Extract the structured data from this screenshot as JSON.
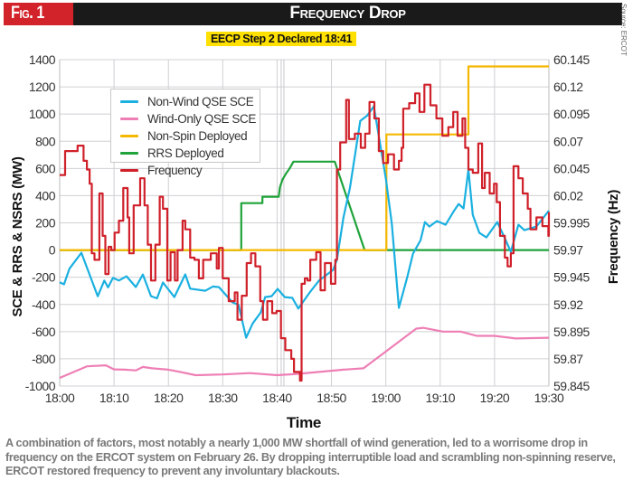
{
  "header": {
    "figure_label": "Fig. 1",
    "title": "Frequency Drop",
    "source": "Source: ERCOT"
  },
  "annotation": {
    "eecp": "EECP Step 2 Declared 18:41"
  },
  "caption": "A combination of factors, most notably a nearly 1,000 MW shortfall of wind generation, led to a worrisome drop in frequency on the ERCOT system on February 26. By dropping interruptible load and scrambling non-spinning reserve, ERCOT restored frequency to prevent any involuntary blackouts.",
  "chart_data": {
    "type": "line",
    "title": "Frequency Drop",
    "xlabel": "Time",
    "ylabel": "SCE & RRS & NSRS (MW)",
    "y2label": "Frequency (Hz)",
    "x_unit": "minutes after 18:00",
    "xlim": [
      0,
      90
    ],
    "ylim": [
      -1000,
      1400
    ],
    "y2lim": [
      59.845,
      60.145
    ],
    "grid": true,
    "legend_position": "top-left",
    "x_ticks": [
      "18:00",
      "18:10",
      "18:20",
      "18:30",
      "18:40",
      "18:50",
      "19:00",
      "19:10",
      "19:20",
      "19:30"
    ],
    "y_ticks": [
      "1400",
      "1200",
      "1000",
      "800",
      "600",
      "400",
      "200",
      "0",
      "-200",
      "-400",
      "-600",
      "-800",
      "-1000"
    ],
    "y2_ticks": [
      "60.145",
      "60.12",
      "60.095",
      "60.07",
      "60.045",
      "60.02",
      "59.995",
      "59.97",
      "59.945",
      "59.92",
      "59.895",
      "59.87",
      "59.845"
    ],
    "event_marker_minute": 41,
    "series": [
      {
        "name": "Non-Wind QSE SCE",
        "axis": "left",
        "color": "#1ab0e0",
        "points": [
          [
            0,
            -237
          ],
          [
            0.8,
            -252
          ],
          [
            1.8,
            -137
          ],
          [
            4,
            -20
          ],
          [
            7,
            -340
          ],
          [
            8.2,
            -225
          ],
          [
            8.9,
            -275
          ],
          [
            9.8,
            -205
          ],
          [
            10.9,
            -224
          ],
          [
            12.3,
            -193
          ],
          [
            14,
            -272
          ],
          [
            15.3,
            -180
          ],
          [
            16.8,
            -339
          ],
          [
            17.9,
            -355
          ],
          [
            19,
            -239
          ],
          [
            21.1,
            -346
          ],
          [
            23.1,
            -179
          ],
          [
            24,
            -284
          ],
          [
            26.8,
            -299
          ],
          [
            28.2,
            -268
          ],
          [
            29.3,
            -273
          ],
          [
            31.8,
            -385
          ],
          [
            32.9,
            -403
          ],
          [
            34.3,
            -645
          ],
          [
            35.5,
            -540
          ],
          [
            37,
            -458
          ],
          [
            37.8,
            -346
          ],
          [
            39,
            -339
          ],
          [
            40.1,
            -286
          ],
          [
            41.4,
            -346
          ],
          [
            42.8,
            -352
          ],
          [
            43.9,
            -430
          ],
          [
            46,
            -312
          ],
          [
            47.7,
            -225
          ],
          [
            50.3,
            -146
          ],
          [
            51,
            -71
          ],
          [
            52.2,
            239
          ],
          [
            53.4,
            458
          ],
          [
            55.3,
            950
          ],
          [
            56.6,
            990
          ],
          [
            57.8,
            1056
          ],
          [
            58.9,
            791
          ],
          [
            60,
            525
          ],
          [
            61.1,
            193
          ],
          [
            62.4,
            -425
          ],
          [
            63.9,
            -206
          ],
          [
            65,
            -27
          ],
          [
            66.4,
            73
          ],
          [
            67.2,
            206
          ],
          [
            68,
            173
          ],
          [
            69.4,
            213
          ],
          [
            71,
            186
          ],
          [
            72.5,
            286
          ],
          [
            73.4,
            339
          ],
          [
            74.3,
            306
          ],
          [
            75.2,
            591
          ],
          [
            76,
            259
          ],
          [
            77.2,
            126
          ],
          [
            78.5,
            93
          ],
          [
            80.5,
            206
          ],
          [
            81.9,
            86
          ],
          [
            83,
            -13
          ],
          [
            84.4,
            186
          ],
          [
            85.5,
            146
          ],
          [
            87.7,
            173
          ],
          [
            90,
            290
          ]
        ]
      },
      {
        "name": "Wind-Only QSE SCE",
        "axis": "left",
        "color": "#ee7fb5",
        "points": [
          [
            0,
            -940
          ],
          [
            5,
            -855
          ],
          [
            8.5,
            -848
          ],
          [
            10,
            -878
          ],
          [
            12,
            -880
          ],
          [
            14,
            -885
          ],
          [
            15.3,
            -860
          ],
          [
            17,
            -870
          ],
          [
            20,
            -880
          ],
          [
            22,
            -895
          ],
          [
            25,
            -920
          ],
          [
            30,
            -915
          ],
          [
            35,
            -905
          ],
          [
            40,
            -920
          ],
          [
            43.9,
            -910
          ],
          [
            52.2,
            -880
          ],
          [
            55.9,
            -870
          ],
          [
            65.6,
            -578
          ],
          [
            66.9,
            -572
          ],
          [
            70.5,
            -600
          ],
          [
            73.8,
            -600
          ],
          [
            76.7,
            -631
          ],
          [
            80,
            -631
          ],
          [
            83.9,
            -650
          ],
          [
            90,
            -645
          ]
        ]
      },
      {
        "name": "Non-Spin Deployed",
        "axis": "left",
        "color": "#f5b800",
        "points": [
          [
            0,
            0
          ],
          [
            60.1,
            0
          ],
          [
            60.1,
            850
          ],
          [
            75.2,
            850
          ],
          [
            75.2,
            1350
          ],
          [
            90,
            1350
          ]
        ]
      },
      {
        "name": "RRS Deployed",
        "axis": "left",
        "color": "#1fa33a",
        "points": [
          [
            0,
            0
          ],
          [
            33.4,
            0
          ],
          [
            33.4,
            345
          ],
          [
            37.3,
            345
          ],
          [
            37.3,
            392
          ],
          [
            40.3,
            392
          ],
          [
            40.5,
            460
          ],
          [
            41,
            520
          ],
          [
            41.6,
            560
          ],
          [
            42.3,
            600
          ],
          [
            43,
            650
          ],
          [
            50.6,
            650
          ],
          [
            56.1,
            0
          ],
          [
            90,
            0
          ]
        ]
      },
      {
        "name": "Frequency",
        "axis": "right",
        "color": "#d0202a",
        "points": [
          [
            0,
            60.039
          ],
          [
            1,
            60.061
          ],
          [
            3.3,
            60.066
          ],
          [
            4.4,
            60.052
          ],
          [
            5,
            60.044
          ],
          [
            5.5,
            60.031
          ],
          [
            5.9,
            59.967
          ],
          [
            6.4,
            59.961
          ],
          [
            7.3,
            60.022
          ],
          [
            7.9,
            59.983
          ],
          [
            8.4,
            59.948
          ],
          [
            9,
            59.973
          ],
          [
            9.5,
            59.97
          ],
          [
            10.1,
            59.986
          ],
          [
            10.9,
            59.997
          ],
          [
            11.7,
            60.027
          ],
          [
            12.5,
            60.0
          ],
          [
            12.8,
            59.967
          ],
          [
            13.6,
            60.011
          ],
          [
            14.8,
            60.036
          ],
          [
            15.6,
            60.011
          ],
          [
            16.2,
            59.975
          ],
          [
            16.8,
            59.942
          ],
          [
            17.6,
            59.975
          ],
          [
            18.4,
            60.019
          ],
          [
            19,
            60.008
          ],
          [
            19.8,
            59.942
          ],
          [
            20.4,
            59.968
          ],
          [
            21.2,
            59.942
          ],
          [
            21.7,
            59.97
          ],
          [
            22.6,
            59.997
          ],
          [
            23.1,
            59.989
          ],
          [
            24,
            59.963
          ],
          [
            24.8,
            59.961
          ],
          [
            25.6,
            59.944
          ],
          [
            26.4,
            59.961
          ],
          [
            27.8,
            59.967
          ],
          [
            28.9,
            59.953
          ],
          [
            29.3,
            59.972
          ],
          [
            30,
            59.944
          ],
          [
            31.1,
            59.923
          ],
          [
            32.2,
            59.931
          ],
          [
            32.7,
            59.906
          ],
          [
            33.5,
            59.928
          ],
          [
            34.4,
            59.958
          ],
          [
            35.2,
            59.967
          ],
          [
            36,
            59.955
          ],
          [
            36.9,
            59.923
          ],
          [
            37.4,
            59.906
          ],
          [
            38.2,
            59.923
          ],
          [
            39.1,
            59.912
          ],
          [
            39.9,
            59.914
          ],
          [
            40.7,
            59.889
          ],
          [
            41.5,
            59.878
          ],
          [
            42.6,
            59.87
          ],
          [
            43.1,
            59.858
          ],
          [
            44.2,
            59.85
          ],
          [
            44.5,
            59.939
          ],
          [
            45.1,
            59.944
          ],
          [
            45.6,
            59.942
          ],
          [
            46.1,
            59.961
          ],
          [
            47.2,
            59.968
          ],
          [
            48,
            59.933
          ],
          [
            48.8,
            59.958
          ],
          [
            49.9,
            59.939
          ],
          [
            50.7,
            59.961
          ],
          [
            51,
            60.044
          ],
          [
            51.6,
            60.069
          ],
          [
            52.7,
            60.108
          ],
          [
            53.2,
            60.072
          ],
          [
            54.3,
            60.077
          ],
          [
            55.4,
            60.064
          ],
          [
            56.2,
            60.077
          ],
          [
            57,
            60.106
          ],
          [
            57.9,
            60.091
          ],
          [
            58.7,
            60.061
          ],
          [
            59.5,
            60.05
          ],
          [
            60.4,
            60.058
          ],
          [
            61.5,
            60.044
          ],
          [
            62.4,
            60.052
          ],
          [
            62.9,
            60.064
          ],
          [
            63.2,
            60.1
          ],
          [
            64.3,
            60.105
          ],
          [
            65.4,
            60.114
          ],
          [
            66.2,
            60.097
          ],
          [
            67.1,
            60.122
          ],
          [
            68.2,
            60.103
          ],
          [
            69.3,
            60.091
          ],
          [
            70.4,
            60.075
          ],
          [
            71.5,
            60.083
          ],
          [
            72.4,
            60.097
          ],
          [
            73.2,
            60.075
          ],
          [
            74.1,
            60.091
          ],
          [
            74.6,
            60.064
          ],
          [
            75.2,
            60.044
          ],
          [
            76,
            60.041
          ],
          [
            77,
            60.068
          ],
          [
            77.7,
            60.027
          ],
          [
            78.2,
            60.041
          ],
          [
            79.1,
            60.022
          ],
          [
            79.9,
            60.031
          ],
          [
            80.4,
            60.014
          ],
          [
            81,
            59.983
          ],
          [
            81.9,
            59.963
          ],
          [
            82.4,
            59.955
          ],
          [
            83,
            59.967
          ],
          [
            83.5,
            60.047
          ],
          [
            84.4,
            60.036
          ],
          [
            85.2,
            60.022
          ],
          [
            86.1,
            60.008
          ],
          [
            86.6,
            59.989
          ],
          [
            87.7,
            60.0
          ],
          [
            88.8,
            59.992
          ],
          [
            89.9,
            59.983
          ],
          [
            90,
            60.005
          ]
        ]
      }
    ]
  }
}
